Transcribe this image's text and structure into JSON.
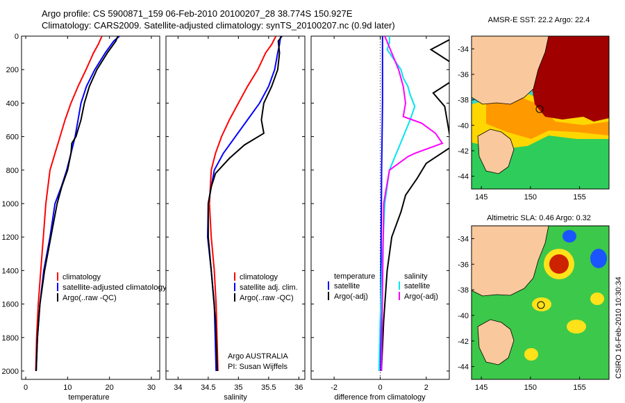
{
  "header": {
    "line1": "Argo profile: CS 5900871_159 06-Feb-2010 20100207_28 38.774S 150.927E",
    "line2": "Climatology: CARS2009. Satellite-adjusted climatology: synTS_20100207.nc (0.9d later)"
  },
  "chart_data": [
    {
      "type": "line",
      "xlabel": "temperature",
      "ylabel": "",
      "xlim": [
        -1,
        32
      ],
      "ylim": [
        0,
        2050
      ],
      "y_reversed": true,
      "xticks": [
        "0",
        "10",
        "20",
        "30"
      ],
      "yticks": [
        "0",
        "200",
        "400",
        "600",
        "800",
        "1000",
        "1200",
        "1400",
        "1600",
        "1800",
        "2000"
      ],
      "legend": [
        "climatology",
        "satellite-adjusted climatology",
        "Argo(..raw -QC)"
      ],
      "series": [
        {
          "name": "climatology",
          "color": "#ff0000",
          "x": [
            18.2,
            17.3,
            16.2,
            14.4,
            12.5,
            10.8,
            9.4,
            8.2,
            7.0,
            5.8,
            4.8,
            4.2,
            3.6,
            3.0,
            2.6,
            2.4
          ],
          "y": [
            0,
            50,
            100,
            200,
            300,
            400,
            500,
            600,
            700,
            800,
            1000,
            1200,
            1400,
            1600,
            1800,
            2000
          ]
        },
        {
          "name": "satellite-adjusted climatology",
          "color": "#0000ff",
          "x": [
            22.4,
            21.0,
            19.0,
            16.5,
            14.5,
            13.2,
            12.5,
            11.8,
            10.8,
            9.8,
            8.5,
            7.0,
            5.8,
            4.3,
            3.4,
            2.8,
            2.5
          ],
          "y": [
            0,
            30,
            100,
            200,
            300,
            400,
            500,
            600,
            700,
            800,
            900,
            1000,
            1200,
            1400,
            1600,
            1800,
            2000
          ]
        },
        {
          "name": "Argo(..raw -QC)",
          "color": "#000000",
          "x": [
            22.0,
            21.5,
            19.5,
            17.0,
            15.2,
            14.0,
            13.2,
            12.0,
            11.0,
            10.8,
            10.0,
            8.6,
            7.5,
            6.0,
            4.5,
            3.4,
            2.8,
            2.5
          ],
          "y": [
            0,
            30,
            100,
            200,
            300,
            400,
            500,
            600,
            640,
            700,
            800,
            900,
            1000,
            1200,
            1400,
            1600,
            1800,
            2000
          ]
        }
      ]
    },
    {
      "type": "line",
      "xlabel": "salinity",
      "ylabel": "",
      "xlim": [
        33.8,
        36.1
      ],
      "ylim": [
        0,
        2050
      ],
      "y_reversed": true,
      "xticks": [
        "34",
        "34.5",
        "35",
        "35.5",
        "36"
      ],
      "legend": [
        "climatology",
        "satellite adj. clim.",
        "Argo(..raw -QC)"
      ],
      "series": [
        {
          "name": "climatology",
          "color": "#ff0000",
          "x": [
            35.62,
            35.55,
            35.45,
            35.32,
            35.15,
            35.0,
            34.85,
            34.72,
            34.62,
            34.55,
            34.52,
            34.55,
            34.6,
            34.63,
            34.66
          ],
          "y": [
            0,
            50,
            100,
            200,
            300,
            400,
            500,
            600,
            700,
            800,
            1000,
            1200,
            1400,
            1600,
            2000
          ]
        },
        {
          "name": "satellite adj. clim.",
          "color": "#0000ff",
          "x": [
            35.7,
            35.68,
            35.65,
            35.6,
            35.5,
            35.35,
            35.15,
            34.95,
            34.75,
            34.6,
            34.5,
            34.49,
            34.55,
            34.6,
            34.63
          ],
          "y": [
            0,
            50,
            100,
            200,
            300,
            400,
            500,
            600,
            700,
            800,
            1000,
            1200,
            1400,
            1600,
            2000
          ]
        },
        {
          "name": "Argo(..raw -QC)",
          "color": "#000000",
          "x": [
            35.72,
            35.66,
            35.68,
            35.65,
            35.55,
            35.42,
            35.38,
            35.42,
            35.1,
            34.85,
            34.62,
            34.55,
            34.5,
            34.5,
            34.55,
            34.62,
            34.65
          ],
          "y": [
            0,
            30,
            100,
            200,
            300,
            400,
            500,
            580,
            650,
            730,
            820,
            900,
            1000,
            1200,
            1400,
            1700,
            2000
          ]
        }
      ],
      "annotation": [
        "Argo AUSTRALIA",
        "PI: Susan Wijffels"
      ]
    },
    {
      "type": "line",
      "xlabel": "difference from climatology",
      "ylabel": "",
      "xlim": [
        -3,
        3
      ],
      "ylim": [
        0,
        2050
      ],
      "y_reversed": true,
      "xticks": [
        "-2",
        "0",
        "2"
      ],
      "legend_groups": [
        {
          "title": "temperature",
          "entries": [
            "satellite",
            "Argo(-adj)"
          ]
        },
        {
          "title": "salinity",
          "entries": [
            "satellite",
            "Argo(-adj)"
          ]
        }
      ],
      "series": [
        {
          "name": "satellite",
          "color": "#0000ff",
          "x": [
            0.1,
            0.1,
            0.1,
            0.08,
            0.06,
            0.05,
            0.04,
            0.03,
            0.02,
            0.02
          ],
          "y": [
            0,
            200,
            400,
            600,
            800,
            1000,
            1200,
            1400,
            1700,
            2000
          ]
        },
        {
          "name": "Argo(-adj)",
          "color": "#000000",
          "x": [
            3.3,
            2.2,
            3.1,
            3.2,
            2.3,
            2.8,
            3.1,
            2.0,
            1.6,
            1.1,
            0.9,
            0.5,
            0.3,
            0.15,
            0.05
          ],
          "y": [
            0,
            80,
            160,
            260,
            340,
            420,
            660,
            760,
            850,
            950,
            1050,
            1200,
            1400,
            1700,
            2000
          ]
        },
        {
          "name": "satellite",
          "color": "#00e5ee",
          "x": [
            0.4,
            0.4,
            0.3,
            0.5,
            0.7,
            0.9,
            1.0,
            1.2,
            1.3,
            1.5,
            1.3,
            1.0,
            0.7,
            0.4,
            0.2,
            0.1,
            0.0,
            -0.05
          ],
          "y": [
            0,
            40,
            80,
            120,
            160,
            200,
            250,
            300,
            350,
            420,
            500,
            600,
            700,
            800,
            1000,
            1300,
            1700,
            2000
          ]
        },
        {
          "name": "Argo(-adj)",
          "color": "#ff00ff",
          "x": [
            0.2,
            0.5,
            0.8,
            1.0,
            1.1,
            1.0,
            1.4,
            1.8,
            2.4,
            2.7,
            1.5,
            1.2,
            0.4,
            0.15,
            0.1,
            0.05
          ],
          "y": [
            0,
            100,
            200,
            300,
            400,
            480,
            500,
            520,
            580,
            640,
            700,
            720,
            800,
            1000,
            1500,
            2000
          ]
        }
      ]
    }
  ],
  "maps": {
    "sst": {
      "title": "AMSR-E SST: 22.2 Argo: 22.4",
      "yticks": [
        "-34",
        "-36",
        "-38",
        "-40",
        "-42",
        "-44"
      ],
      "xticks": [
        "145",
        "150",
        "155"
      ],
      "colors": {
        "land": "#f9c89c",
        "warm": "#a00000",
        "orange": "#ff9900",
        "yellow": "#ffd700",
        "green": "#2ecc5a",
        "cyan": "#3bd6c6"
      }
    },
    "sla": {
      "title": "Altimetric SLA: 0.46 Argo: 0.32",
      "yticks": [
        "-34",
        "-36",
        "-38",
        "-40",
        "-42",
        "-44"
      ],
      "xticks": [
        "145",
        "150",
        "155"
      ],
      "colors": {
        "land": "#f9c89c",
        "green": "#3cc84a",
        "yellow": "#ffe21a",
        "red": "#cc2200",
        "blue": "#1a55ff"
      }
    },
    "credit": "CSIRO 16-Feb-2010 10:30:34"
  }
}
